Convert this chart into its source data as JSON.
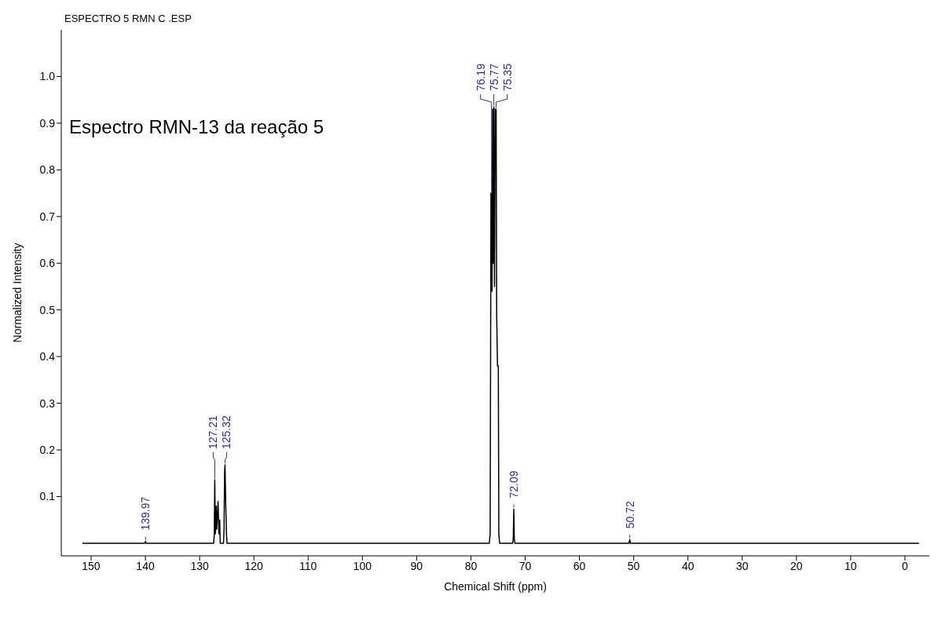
{
  "chart_data": {
    "type": "line",
    "title": "ESPECTRO 5 RMN C .ESP",
    "xlabel": "Chemical Shift (ppm)",
    "ylabel": "Normalized Intensity",
    "annotations": [
      "Espectro RMN-13 da reação 5",
      {
        "text": "139.97",
        "x": 139.97,
        "y": 0.004
      },
      {
        "text": "127.21",
        "x": 127.21,
        "y": 0.136
      },
      {
        "text": "125.32",
        "x": 125.32,
        "y": 0.168
      },
      {
        "text": "76.19",
        "x": 76.19,
        "y": 0.75
      },
      {
        "text": "75.77",
        "x": 75.77,
        "y": 0.935
      },
      {
        "text": "75.35",
        "x": 75.35,
        "y": 0.93
      },
      {
        "text": "72.09",
        "x": 72.09,
        "y": 0.073
      },
      {
        "text": "50.72",
        "x": 50.72,
        "y": 0.008
      }
    ],
    "x": [
      151.6,
      140.1,
      139.97,
      139.85,
      127.4,
      127.3,
      127.21,
      127.1,
      126.95,
      126.85,
      126.6,
      126.45,
      126.3,
      126.2,
      125.6,
      125.5,
      125.4,
      125.32,
      125.2,
      125.05,
      124.95,
      76.6,
      76.45,
      76.3,
      76.19,
      76.1,
      76.0,
      75.9,
      75.77,
      75.65,
      75.5,
      75.35,
      75.25,
      75.1,
      74.95,
      74.85,
      74.7,
      72.3,
      72.2,
      72.09,
      72.0,
      71.9,
      50.85,
      50.72,
      50.6,
      -2.6
    ],
    "series": [
      {
        "color": "#000000",
        "values": [
          0,
          0,
          0.004,
          0,
          0,
          0.02,
          0.136,
          0.02,
          0.08,
          0.03,
          0.09,
          0.02,
          0.05,
          0,
          0,
          0.03,
          0.15,
          0.168,
          0.09,
          0.02,
          0,
          0,
          0.02,
          0.75,
          0.75,
          0.54,
          0.93,
          0.6,
          0.935,
          0.55,
          0.93,
          0.93,
          0.49,
          0.38,
          0.38,
          0.02,
          0,
          0,
          0.01,
          0.073,
          0.01,
          0,
          0,
          0.008,
          0,
          0
        ]
      }
    ],
    "xlim": [
      155.5,
      -4.5
    ],
    "xticks": [
      150,
      140,
      130,
      120,
      110,
      100,
      90,
      80,
      70,
      60,
      50,
      40,
      30,
      20,
      10,
      0
    ],
    "ylim": [
      -0.027,
      1.1
    ],
    "yticks": [
      0.1,
      0.2,
      0.3,
      0.4,
      0.5,
      0.6,
      0.7,
      0.8,
      0.9,
      {
        "value": 1,
        "label": "1.0"
      }
    ],
    "grid": false,
    "legend": false,
    "marker": "none",
    "line_style": "solid"
  }
}
